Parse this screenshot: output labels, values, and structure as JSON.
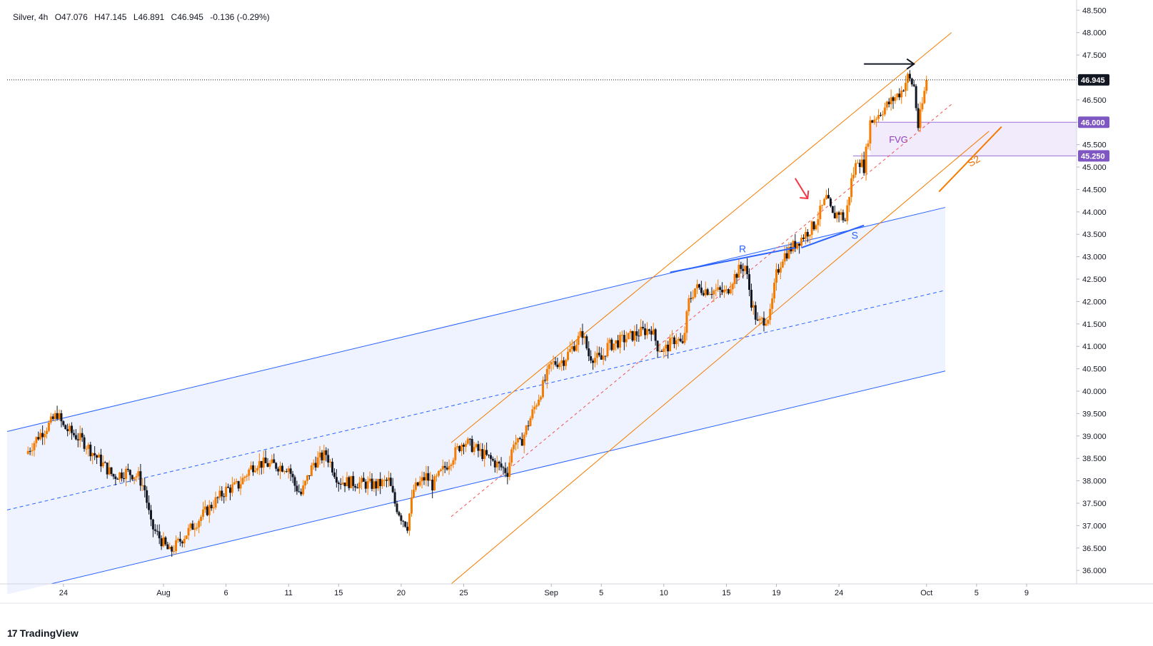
{
  "legend": {
    "symbol": "Silver, 4h",
    "open": "O47.076",
    "high": "H47.145",
    "low": "L46.891",
    "close": "C46.945",
    "change": "-0.136 (-0.29%)"
  },
  "brand": {
    "name": "TradingView",
    "icon": "tradingview-logo-icon"
  },
  "colors": {
    "up": "#f57c00",
    "down": "#131722",
    "channel_blue": "#2962ff",
    "channel_fill": "#e8efff",
    "orange_channel": "#f57c00",
    "fvg_fill": "#ede6fa",
    "fvg_border": "#9c6fd6",
    "red_arrow": "#f23645"
  },
  "chart_data": {
    "type": "candlestick",
    "symbol": "Silver",
    "timeframe": "4h",
    "ylim": [
      35.7,
      48.6
    ],
    "y_ticks": [
      "48.500",
      "48.000",
      "47.500",
      "47.000",
      "46.500",
      "46.000",
      "45.500",
      "45.000",
      "44.500",
      "44.000",
      "43.500",
      "43.000",
      "42.500",
      "42.000",
      "41.500",
      "41.000",
      "40.500",
      "40.000",
      "39.500",
      "39.000",
      "38.500",
      "38.000",
      "37.500",
      "37.000",
      "36.500",
      "36.000"
    ],
    "x_ticks": [
      {
        "label": "24",
        "date": "2025-07-24"
      },
      {
        "label": "Aug",
        "date": "2025-08-01"
      },
      {
        "label": "6",
        "date": "2025-08-06"
      },
      {
        "label": "11",
        "date": "2025-08-11"
      },
      {
        "label": "15",
        "date": "2025-08-15"
      },
      {
        "label": "20",
        "date": "2025-08-20"
      },
      {
        "label": "25",
        "date": "2025-08-25"
      },
      {
        "label": "Sep",
        "date": "2025-09-01"
      },
      {
        "label": "5",
        "date": "2025-09-05"
      },
      {
        "label": "10",
        "date": "2025-09-10"
      },
      {
        "label": "15",
        "date": "2025-09-15"
      },
      {
        "label": "19",
        "date": "2025-09-19"
      },
      {
        "label": "24",
        "date": "2025-09-24"
      },
      {
        "label": "Oct",
        "date": "2025-10-01"
      },
      {
        "label": "5",
        "date": "2025-10-05"
      },
      {
        "label": "9",
        "date": "2025-10-09"
      }
    ],
    "price_path": [
      {
        "date": "2025-07-21T00:00",
        "price": 38.6
      },
      {
        "date": "2025-07-22T00:00",
        "price": 39.0
      },
      {
        "date": "2025-07-23T00:00",
        "price": 39.3
      },
      {
        "date": "2025-07-23T12:00",
        "price": 39.5
      },
      {
        "date": "2025-07-24T00:00",
        "price": 39.2
      },
      {
        "date": "2025-07-25T00:00",
        "price": 39.0
      },
      {
        "date": "2025-07-25T12:00",
        "price": 38.9
      },
      {
        "date": "2025-07-28T00:00",
        "price": 38.1
      },
      {
        "date": "2025-07-29T00:00",
        "price": 38.2
      },
      {
        "date": "2025-07-30T00:00",
        "price": 38.1
      },
      {
        "date": "2025-07-30T12:00",
        "price": 37.8
      },
      {
        "date": "2025-07-31T00:00",
        "price": 37.0
      },
      {
        "date": "2025-08-01T00:00",
        "price": 36.6
      },
      {
        "date": "2025-08-01T12:00",
        "price": 36.4
      },
      {
        "date": "2025-08-04T00:00",
        "price": 37.2
      },
      {
        "date": "2025-08-05T00:00",
        "price": 37.5
      },
      {
        "date": "2025-08-06T00:00",
        "price": 37.8
      },
      {
        "date": "2025-08-07T00:00",
        "price": 37.9
      },
      {
        "date": "2025-08-08T00:00",
        "price": 38.3
      },
      {
        "date": "2025-08-08T12:00",
        "price": 38.4
      },
      {
        "date": "2025-08-11T00:00",
        "price": 38.3
      },
      {
        "date": "2025-08-11T12:00",
        "price": 37.9
      },
      {
        "date": "2025-08-12T00:00",
        "price": 37.7
      },
      {
        "date": "2025-08-13T00:00",
        "price": 38.4
      },
      {
        "date": "2025-08-14T00:00",
        "price": 38.6
      },
      {
        "date": "2025-08-14T12:00",
        "price": 38.3
      },
      {
        "date": "2025-08-15T00:00",
        "price": 38.0
      },
      {
        "date": "2025-08-18T00:00",
        "price": 37.9
      },
      {
        "date": "2025-08-19T00:00",
        "price": 38.0
      },
      {
        "date": "2025-08-19T12:00",
        "price": 37.5
      },
      {
        "date": "2025-08-20T00:00",
        "price": 37.2
      },
      {
        "date": "2025-08-20T12:00",
        "price": 37.0
      },
      {
        "date": "2025-08-21T00:00",
        "price": 37.8
      },
      {
        "date": "2025-08-22T00:00",
        "price": 38.1
      },
      {
        "date": "2025-08-22T12:00",
        "price": 37.9
      },
      {
        "date": "2025-08-25T00:00",
        "price": 38.9
      },
      {
        "date": "2025-08-26T00:00",
        "price": 38.7
      },
      {
        "date": "2025-08-27T00:00",
        "price": 38.5
      },
      {
        "date": "2025-08-28T00:00",
        "price": 38.3
      },
      {
        "date": "2025-08-28T12:00",
        "price": 38.2
      },
      {
        "date": "2025-08-29T00:00",
        "price": 38.9
      },
      {
        "date": "2025-08-29T12:00",
        "price": 38.8
      },
      {
        "date": "2025-09-01T00:00",
        "price": 40.6
      },
      {
        "date": "2025-09-02T00:00",
        "price": 40.7
      },
      {
        "date": "2025-09-03T00:00",
        "price": 41.1
      },
      {
        "date": "2025-09-03T12:00",
        "price": 41.3
      },
      {
        "date": "2025-09-04T00:00",
        "price": 40.8
      },
      {
        "date": "2025-09-05T00:00",
        "price": 40.7
      },
      {
        "date": "2025-09-05T12:00",
        "price": 41.0
      },
      {
        "date": "2025-09-08T00:00",
        "price": 41.3
      },
      {
        "date": "2025-09-09T00:00",
        "price": 41.4
      },
      {
        "date": "2025-09-09T12:00",
        "price": 41.0
      },
      {
        "date": "2025-09-10T00:00",
        "price": 40.9
      },
      {
        "date": "2025-09-11T00:00",
        "price": 41.2
      },
      {
        "date": "2025-09-11T12:00",
        "price": 41.0
      },
      {
        "date": "2025-09-12T00:00",
        "price": 42.0
      },
      {
        "date": "2025-09-12T12:00",
        "price": 42.3
      },
      {
        "date": "2025-09-15T00:00",
        "price": 42.2
      },
      {
        "date": "2025-09-15T12:00",
        "price": 42.5
      },
      {
        "date": "2025-09-16T00:00",
        "price": 42.7
      },
      {
        "date": "2025-09-16T12:00",
        "price": 42.8
      },
      {
        "date": "2025-09-17T00:00",
        "price": 42.0
      },
      {
        "date": "2025-09-17T12:00",
        "price": 41.5
      },
      {
        "date": "2025-09-18T00:00",
        "price": 41.6
      },
      {
        "date": "2025-09-18T12:00",
        "price": 41.7
      },
      {
        "date": "2025-09-19T00:00",
        "price": 42.6
      },
      {
        "date": "2025-09-19T12:00",
        "price": 43.0
      },
      {
        "date": "2025-09-22T00:00",
        "price": 43.7
      },
      {
        "date": "2025-09-22T12:00",
        "price": 44.0
      },
      {
        "date": "2025-09-23T00:00",
        "price": 44.3
      },
      {
        "date": "2025-09-23T12:00",
        "price": 43.9
      },
      {
        "date": "2025-09-24T00:00",
        "price": 44.0
      },
      {
        "date": "2025-09-24T12:00",
        "price": 43.8
      },
      {
        "date": "2025-09-25T00:00",
        "price": 44.7
      },
      {
        "date": "2025-09-25T12:00",
        "price": 45.2
      },
      {
        "date": "2025-09-26T00:00",
        "price": 45.0
      },
      {
        "date": "2025-09-26T12:00",
        "price": 46.0
      },
      {
        "date": "2025-09-29T00:00",
        "price": 46.7
      },
      {
        "date": "2025-09-29T12:00",
        "price": 47.0
      },
      {
        "date": "2025-09-30T00:00",
        "price": 46.8
      },
      {
        "date": "2025-09-30T08:00",
        "price": 45.9
      },
      {
        "date": "2025-09-30T16:00",
        "price": 46.4
      },
      {
        "date": "2025-10-01T00:00",
        "price": 46.945
      }
    ],
    "current_price": {
      "value": 46.945,
      "label": "46.945"
    },
    "fvg_zone": {
      "top": 46.0,
      "bottom": 45.25,
      "top_label": "46.000",
      "bottom_label": "45.250",
      "text": "FVG"
    },
    "blue_channel": {
      "fill_start": "2025-07-19T12:00",
      "fill_end": "2025-10-02T12:00",
      "upper": [
        {
          "date": "2025-07-19T12:00",
          "price": 39.1
        },
        {
          "date": "2025-10-02T12:00",
          "price": 44.1
        }
      ],
      "middle": [
        {
          "date": "2025-07-19T12:00",
          "price": 37.35
        },
        {
          "date": "2025-10-02T12:00",
          "price": 42.25
        }
      ],
      "lower": [
        {
          "date": "2025-07-23T00:00",
          "price": 35.7
        },
        {
          "date": "2025-10-02T12:00",
          "price": 40.45
        }
      ]
    },
    "orange_channel": {
      "upper": [
        {
          "date": "2025-08-24T00:00",
          "price": 38.85
        },
        {
          "date": "2025-10-03T00:00",
          "price": 48.0
        }
      ],
      "middle": [
        {
          "date": "2025-08-24T00:00",
          "price": 37.2
        },
        {
          "date": "2025-10-03T00:00",
          "price": 46.4
        }
      ],
      "lower": [
        {
          "date": "2025-08-24T00:00",
          "price": 35.7
        },
        {
          "date": "2025-10-06T00:00",
          "price": 45.8
        }
      ]
    },
    "annotations": [
      {
        "id": "R",
        "text": "R",
        "line": [
          {
            "date": "2025-09-10T12:00",
            "price": 42.65
          },
          {
            "date": "2025-09-20T12:00",
            "price": 43.2
          }
        ],
        "label_at": {
          "date": "2025-09-16T00:00",
          "price": 43.1
        }
      },
      {
        "id": "S",
        "text": "S",
        "line": [
          {
            "date": "2025-09-21T00:00",
            "price": 43.2
          },
          {
            "date": "2025-09-26T00:00",
            "price": 43.7
          }
        ],
        "label_at": {
          "date": "2025-09-25T00:00",
          "price": 43.4
        }
      },
      {
        "id": "S2",
        "text": "S2",
        "line": [
          {
            "date": "2025-10-02T00:00",
            "price": 44.45
          },
          {
            "date": "2025-10-07T00:00",
            "price": 45.9
          }
        ],
        "label_at": {
          "date": "2025-10-04T12:00",
          "price": 45.0
        }
      },
      {
        "id": "black-arrow",
        "from": {
          "date": "2025-09-26T00:00",
          "price": 47.3
        },
        "to": {
          "date": "2025-09-30T00:00",
          "price": 47.3
        }
      },
      {
        "id": "red-arrow",
        "from": {
          "date": "2025-09-20T12:00",
          "price": 44.75
        },
        "to": {
          "date": "2025-09-21T12:00",
          "price": 44.3
        }
      }
    ]
  }
}
